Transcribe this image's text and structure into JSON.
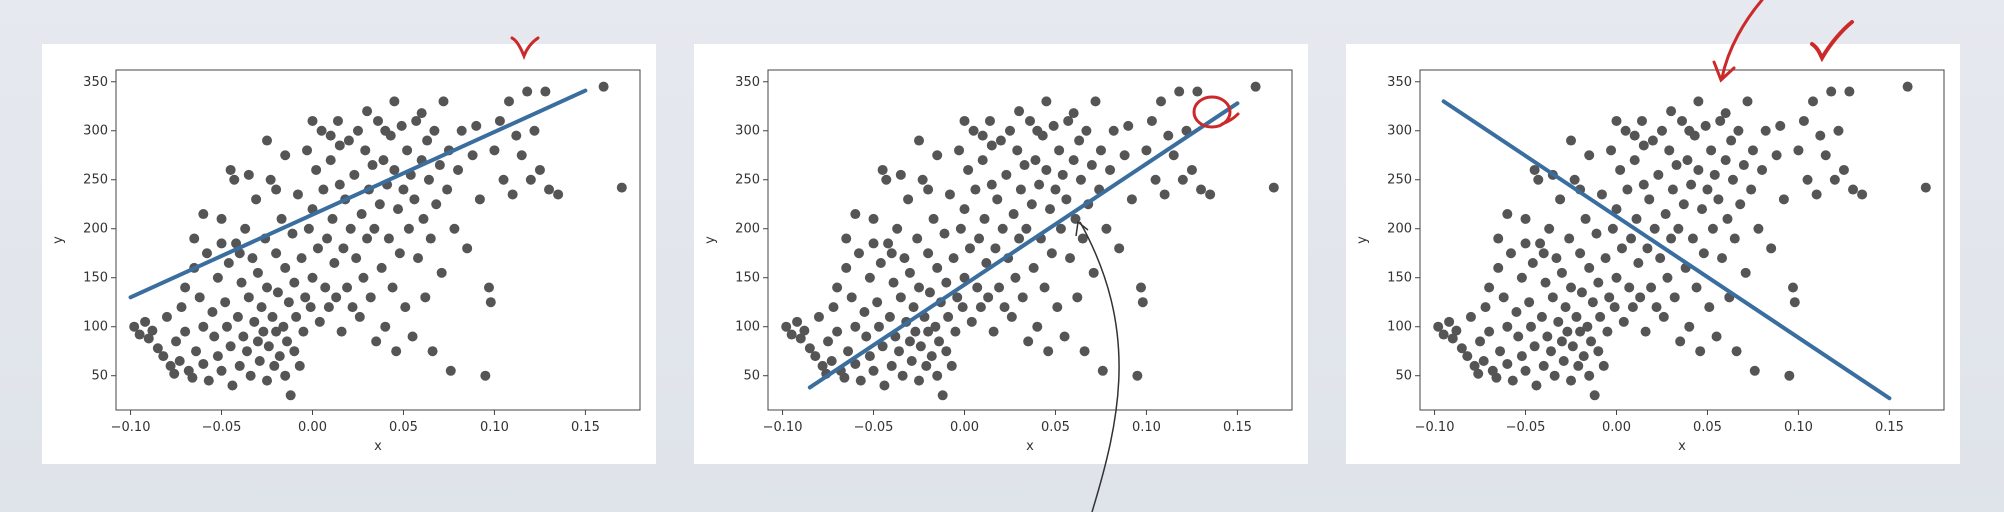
{
  "chart_data": [
    {
      "type": "scatter",
      "title": "",
      "xlabel": "x",
      "ylabel": "y",
      "xlim": [
        -0.108,
        0.18
      ],
      "ylim": [
        15,
        362
      ],
      "xticks": [
        "−0.10",
        "−0.05",
        "0.00",
        "0.05",
        "0.10",
        "0.15"
      ],
      "yticks": [
        "50",
        "100",
        "150",
        "200",
        "250",
        "300",
        "350"
      ],
      "grid": false,
      "series": [
        {
          "type": "scatter",
          "color": "#555555"
        },
        {
          "type": "line",
          "color": "#3a6e9f",
          "x": [
            -0.1,
            0.15
          ],
          "y": [
            130,
            341
          ]
        }
      ]
    },
    {
      "type": "scatter",
      "title": "",
      "xlabel": "x",
      "ylabel": "y",
      "xlim": [
        -0.108,
        0.18
      ],
      "ylim": [
        15,
        362
      ],
      "xticks": [
        "−0.10",
        "−0.05",
        "0.00",
        "0.05",
        "0.10",
        "0.15"
      ],
      "yticks": [
        "50",
        "100",
        "150",
        "200",
        "250",
        "300",
        "350"
      ],
      "grid": false,
      "series": [
        {
          "type": "scatter",
          "color": "#555555"
        },
        {
          "type": "line",
          "color": "#3a6e9f",
          "x": [
            -0.085,
            0.15
          ],
          "y": [
            38,
            328
          ]
        }
      ]
    },
    {
      "type": "scatter",
      "title": "",
      "xlabel": "x",
      "ylabel": "y",
      "xlim": [
        -0.108,
        0.18
      ],
      "ylim": [
        15,
        362
      ],
      "xticks": [
        "−0.10",
        "−0.05",
        "0.00",
        "0.05",
        "0.10",
        "0.15"
      ],
      "yticks": [
        "50",
        "100",
        "150",
        "200",
        "250",
        "300",
        "350"
      ],
      "grid": false,
      "series": [
        {
          "type": "scatter",
          "color": "#555555"
        },
        {
          "type": "line",
          "color": "#3a6e9f",
          "x": [
            -0.095,
            0.15
          ],
          "y": [
            330,
            27
          ]
        }
      ]
    }
  ],
  "scatter_points": [
    [
      -0.098,
      100
    ],
    [
      -0.095,
      92
    ],
    [
      -0.092,
      105
    ],
    [
      -0.09,
      88
    ],
    [
      -0.088,
      96
    ],
    [
      -0.085,
      78
    ],
    [
      -0.082,
      70
    ],
    [
      -0.08,
      110
    ],
    [
      -0.078,
      60
    ],
    [
      -0.076,
      52
    ],
    [
      -0.075,
      85
    ],
    [
      -0.073,
      65
    ],
    [
      -0.072,
      120
    ],
    [
      -0.07,
      140
    ],
    [
      -0.07,
      95
    ],
    [
      -0.068,
      55
    ],
    [
      -0.066,
      48
    ],
    [
      -0.065,
      160
    ],
    [
      -0.064,
      75
    ],
    [
      -0.062,
      130
    ],
    [
      -0.06,
      100
    ],
    [
      -0.06,
      62
    ],
    [
      -0.058,
      175
    ],
    [
      -0.057,
      45
    ],
    [
      -0.055,
      115
    ],
    [
      -0.054,
      90
    ],
    [
      -0.052,
      150
    ],
    [
      -0.052,
      70
    ],
    [
      -0.05,
      210
    ],
    [
      -0.05,
      55
    ],
    [
      -0.048,
      125
    ],
    [
      -0.047,
      100
    ],
    [
      -0.046,
      165
    ],
    [
      -0.045,
      80
    ],
    [
      -0.044,
      40
    ],
    [
      -0.043,
      250
    ],
    [
      -0.042,
      185
    ],
    [
      -0.041,
      110
    ],
    [
      -0.04,
      60
    ],
    [
      -0.039,
      145
    ],
    [
      -0.038,
      90
    ],
    [
      -0.037,
      200
    ],
    [
      -0.036,
      75
    ],
    [
      -0.035,
      130
    ],
    [
      -0.034,
      50
    ],
    [
      -0.033,
      170
    ],
    [
      -0.032,
      105
    ],
    [
      -0.031,
      230
    ],
    [
      -0.03,
      85
    ],
    [
      -0.03,
      155
    ],
    [
      -0.029,
      65
    ],
    [
      -0.028,
      120
    ],
    [
      -0.027,
      95
    ],
    [
      -0.026,
      190
    ],
    [
      -0.025,
      45
    ],
    [
      -0.025,
      140
    ],
    [
      -0.024,
      80
    ],
    [
      -0.023,
      250
    ],
    [
      -0.022,
      110
    ],
    [
      -0.021,
      60
    ],
    [
      -0.02,
      175
    ],
    [
      -0.02,
      95
    ],
    [
      -0.019,
      135
    ],
    [
      -0.018,
      70
    ],
    [
      -0.017,
      210
    ],
    [
      -0.016,
      100
    ],
    [
      -0.015,
      50
    ],
    [
      -0.015,
      160
    ],
    [
      -0.014,
      85
    ],
    [
      -0.013,
      125
    ],
    [
      -0.012,
      30
    ],
    [
      -0.011,
      195
    ],
    [
      -0.01,
      75
    ],
    [
      -0.01,
      145
    ],
    [
      -0.009,
      110
    ],
    [
      -0.008,
      235
    ],
    [
      -0.007,
      60
    ],
    [
      -0.006,
      170
    ],
    [
      -0.005,
      95
    ],
    [
      -0.004,
      130
    ],
    [
      -0.003,
      280
    ],
    [
      -0.002,
      200
    ],
    [
      -0.001,
      120
    ],
    [
      0.0,
      150
    ],
    [
      0.0,
      220
    ],
    [
      0.002,
      260
    ],
    [
      0.003,
      180
    ],
    [
      0.004,
      105
    ],
    [
      0.005,
      300
    ],
    [
      0.006,
      240
    ],
    [
      0.007,
      140
    ],
    [
      0.008,
      190
    ],
    [
      0.009,
      120
    ],
    [
      0.01,
      270
    ],
    [
      0.011,
      210
    ],
    [
      0.012,
      165
    ],
    [
      0.013,
      130
    ],
    [
      0.014,
      310
    ],
    [
      0.015,
      245
    ],
    [
      0.016,
      95
    ],
    [
      0.017,
      180
    ],
    [
      0.018,
      230
    ],
    [
      0.019,
      140
    ],
    [
      0.02,
      290
    ],
    [
      0.021,
      200
    ],
    [
      0.022,
      120
    ],
    [
      0.023,
      255
    ],
    [
      0.024,
      170
    ],
    [
      0.025,
      300
    ],
    [
      0.026,
      110
    ],
    [
      0.027,
      215
    ],
    [
      0.028,
      150
    ],
    [
      0.029,
      280
    ],
    [
      0.03,
      190
    ],
    [
      0.031,
      240
    ],
    [
      0.032,
      130
    ],
    [
      0.033,
      265
    ],
    [
      0.034,
      200
    ],
    [
      0.035,
      85
    ],
    [
      0.036,
      310
    ],
    [
      0.037,
      225
    ],
    [
      0.038,
      160
    ],
    [
      0.039,
      270
    ],
    [
      0.04,
      100
    ],
    [
      0.041,
      245
    ],
    [
      0.042,
      190
    ],
    [
      0.043,
      295
    ],
    [
      0.044,
      140
    ],
    [
      0.045,
      260
    ],
    [
      0.046,
      75
    ],
    [
      0.047,
      220
    ],
    [
      0.048,
      175
    ],
    [
      0.049,
      305
    ],
    [
      0.05,
      240
    ],
    [
      0.051,
      120
    ],
    [
      0.052,
      280
    ],
    [
      0.053,
      200
    ],
    [
      0.054,
      255
    ],
    [
      0.055,
      90
    ],
    [
      0.056,
      230
    ],
    [
      0.057,
      310
    ],
    [
      0.058,
      170
    ],
    [
      0.06,
      270
    ],
    [
      0.061,
      210
    ],
    [
      0.062,
      130
    ],
    [
      0.063,
      290
    ],
    [
      0.064,
      250
    ],
    [
      0.065,
      190
    ],
    [
      0.066,
      75
    ],
    [
      0.067,
      300
    ],
    [
      0.068,
      225
    ],
    [
      0.07,
      265
    ],
    [
      0.071,
      155
    ],
    [
      0.072,
      330
    ],
    [
      0.074,
      240
    ],
    [
      0.075,
      280
    ],
    [
      0.076,
      55
    ],
    [
      0.078,
      200
    ],
    [
      0.08,
      260
    ],
    [
      0.082,
      300
    ],
    [
      0.085,
      180
    ],
    [
      0.088,
      275
    ],
    [
      0.09,
      305
    ],
    [
      0.092,
      230
    ],
    [
      0.095,
      50
    ],
    [
      0.097,
      140
    ],
    [
      0.098,
      125
    ],
    [
      0.1,
      280
    ],
    [
      0.103,
      310
    ],
    [
      0.105,
      250
    ],
    [
      0.108,
      330
    ],
    [
      0.11,
      235
    ],
    [
      0.112,
      295
    ],
    [
      0.115,
      275
    ],
    [
      0.118,
      340
    ],
    [
      0.12,
      250
    ],
    [
      0.122,
      300
    ],
    [
      0.125,
      260
    ],
    [
      0.128,
      340
    ],
    [
      0.13,
      240
    ],
    [
      0.135,
      235
    ],
    [
      0.16,
      345
    ],
    [
      0.17,
      242
    ],
    [
      -0.045,
      260
    ],
    [
      -0.025,
      290
    ],
    [
      -0.015,
      275
    ],
    [
      0.0,
      310
    ],
    [
      0.01,
      295
    ],
    [
      0.03,
      320
    ],
    [
      0.045,
      330
    ],
    [
      0.06,
      318
    ],
    [
      -0.06,
      215
    ],
    [
      -0.035,
      255
    ],
    [
      -0.02,
      240
    ],
    [
      0.015,
      285
    ],
    [
      0.04,
      300
    ],
    [
      -0.05,
      185
    ],
    [
      -0.065,
      190
    ],
    [
      -0.04,
      175
    ]
  ]
}
